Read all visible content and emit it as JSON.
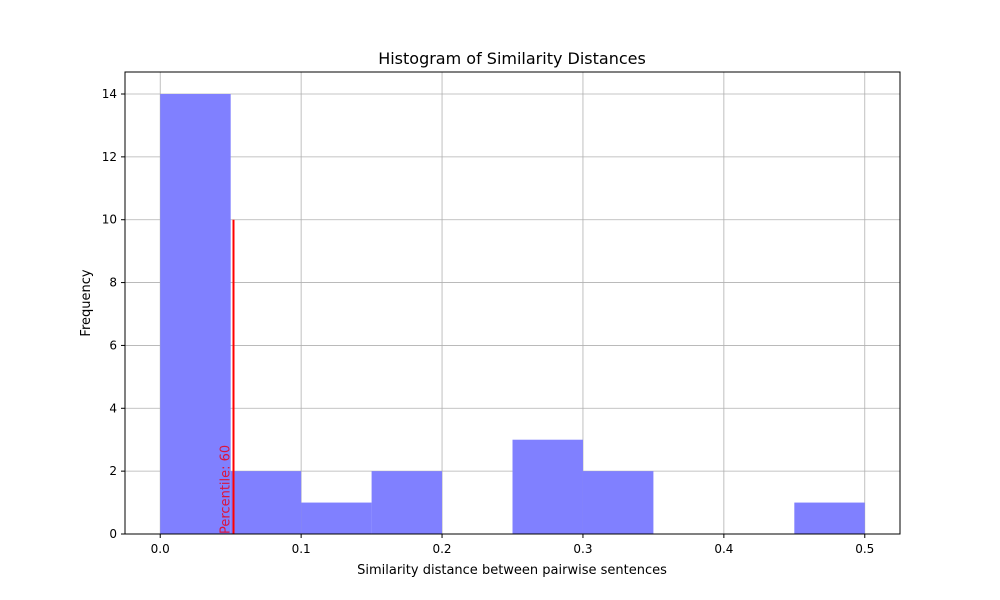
{
  "chart_data": {
    "type": "bar",
    "title": "Histogram of Similarity Distances",
    "xlabel": "Similarity distance between pairwise sentences",
    "ylabel": "Frequency",
    "xlim": [
      -0.025,
      0.525
    ],
    "ylim": [
      0,
      14.7
    ],
    "xticks": [
      0.0,
      0.1,
      0.2,
      0.3,
      0.4,
      0.5
    ],
    "xtick_labels": [
      "0.0",
      "0.1",
      "0.2",
      "0.3",
      "0.4",
      "0.5"
    ],
    "yticks": [
      0,
      2,
      4,
      6,
      8,
      10,
      12,
      14
    ],
    "ytick_labels": [
      "0",
      "2",
      "4",
      "6",
      "8",
      "10",
      "12",
      "14"
    ],
    "grid": true,
    "bin_color": "#8080ff",
    "bins": [
      {
        "start": 0.0,
        "end": 0.05,
        "count": 14
      },
      {
        "start": 0.05,
        "end": 0.1,
        "count": 2
      },
      {
        "start": 0.1,
        "end": 0.15,
        "count": 1
      },
      {
        "start": 0.15,
        "end": 0.2,
        "count": 2
      },
      {
        "start": 0.2,
        "end": 0.25,
        "count": 0
      },
      {
        "start": 0.25,
        "end": 0.3,
        "count": 3
      },
      {
        "start": 0.3,
        "end": 0.35,
        "count": 2
      },
      {
        "start": 0.35,
        "end": 0.4,
        "count": 0
      },
      {
        "start": 0.4,
        "end": 0.45,
        "count": 0
      },
      {
        "start": 0.45,
        "end": 0.5,
        "count": 1
      }
    ],
    "percentile_line": {
      "x": 0.052,
      "y_range": [
        0,
        10
      ],
      "color": "#ff0000",
      "label": "Percentile: 60",
      "label_color": "#dc143c"
    }
  }
}
